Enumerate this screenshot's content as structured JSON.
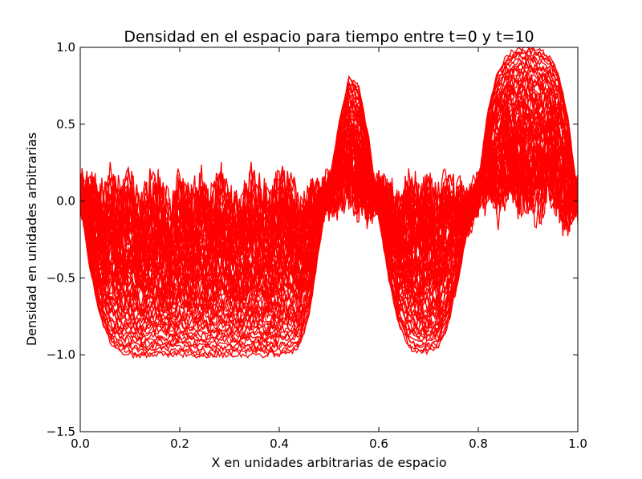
{
  "chart_data": {
    "type": "line",
    "title": "Densidad en el espacio para tiempo entre t=0 y t=10",
    "xlabel": "X en unidades arbitrarias de espacio",
    "ylabel": "Densidad en unidades arbitrarias",
    "xlim": [
      0.0,
      1.0
    ],
    "ylim": [
      -1.5,
      1.0
    ],
    "x_ticks": [
      "0.0",
      "0.2",
      "0.4",
      "0.6",
      "0.8",
      "1.0"
    ],
    "y_ticks": [
      "1.0",
      "0.5",
      "0.0",
      "−0.5",
      "−1.0",
      "−1.5"
    ],
    "grid": false,
    "legend": "none",
    "line_color": "#ff0000",
    "x": [
      0.0,
      0.02,
      0.04,
      0.06,
      0.08,
      0.1,
      0.12,
      0.14,
      0.16,
      0.18,
      0.2,
      0.22,
      0.24,
      0.26,
      0.28,
      0.3,
      0.32,
      0.34,
      0.36,
      0.38,
      0.4,
      0.42,
      0.44,
      0.46,
      0.48,
      0.5,
      0.52,
      0.54,
      0.56,
      0.58,
      0.6,
      0.62,
      0.64,
      0.66,
      0.68,
      0.7,
      0.72,
      0.74,
      0.76,
      0.78,
      0.8,
      0.82,
      0.84,
      0.86,
      0.88,
      0.9,
      0.92,
      0.94,
      0.96,
      0.98,
      1.0
    ],
    "series": [
      {
        "values": [
          0.0,
          -0.45,
          -0.75,
          -0.92,
          -0.98,
          -1.0,
          -1.0,
          -1.0,
          -1.0,
          -1.0,
          -1.0,
          -1.0,
          -1.01,
          -1.01,
          -1.0,
          -1.0,
          -1.0,
          -1.0,
          -1.0,
          -1.0,
          -1.0,
          -0.99,
          -0.95,
          -0.75,
          -0.3,
          0.1,
          0.5,
          0.8,
          0.75,
          0.4,
          -0.1,
          -0.5,
          -0.8,
          -0.95,
          -0.98,
          -0.98,
          -0.95,
          -0.8,
          -0.5,
          -0.15,
          0.1,
          0.6,
          0.85,
          0.95,
          0.99,
          1.0,
          0.99,
          0.95,
          0.85,
          0.55,
          0.0
        ]
      },
      {
        "values": [
          0.08,
          0.12,
          -0.05,
          0.15,
          0.02,
          0.18,
          -0.08,
          0.1,
          0.05,
          -0.12,
          0.2,
          0.0,
          0.14,
          -0.06,
          0.22,
          0.03,
          -0.1,
          0.16,
          0.06,
          -0.04,
          0.12,
          0.18,
          -0.08,
          0.1,
          0.02,
          0.05,
          0.08,
          0.1,
          0.02,
          -0.05,
          0.12,
          0.06,
          -0.1,
          0.15,
          0.02,
          0.1,
          -0.06,
          0.18,
          0.04,
          -0.12,
          0.08,
          0.16,
          -0.04,
          0.2,
          0.02,
          0.1,
          -0.08,
          0.14,
          0.04,
          -0.2,
          0.05
        ]
      }
    ],
    "envelope_note": ""
  }
}
